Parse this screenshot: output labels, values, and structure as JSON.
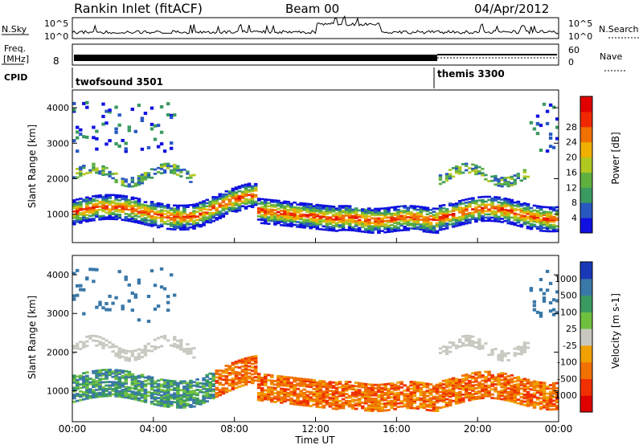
{
  "header": {
    "station": "Rankin Inlet (fitACF)",
    "beam": "Beam 00",
    "date": "04/Apr/2012"
  },
  "status_panel": {
    "nsky_label": "N.Sky",
    "nsky_top": "10^5",
    "nsky_bottom": "10^0",
    "nsearch_label": "N.Search",
    "nsearch_top": "10^5",
    "nsearch_bottom": "10^0",
    "freq_label_1": "Freq.",
    "freq_label_2": "[MHz]",
    "freq_value": "8",
    "nave_label": "Nave",
    "nave_top": "60",
    "nave_bottom": "0",
    "cpid_label": "CPID",
    "cpid_mode_1": "twofsound 3501",
    "cpid_mode_2": "themis 3300"
  },
  "chart_data": [
    {
      "type": "heatmap",
      "title": "",
      "ylabel": "Slant Range [km]",
      "yticks": [
        "1000",
        "2000",
        "3000",
        "4000"
      ],
      "ylim": [
        200,
        4500
      ],
      "xlim_hours": [
        0,
        24
      ],
      "colorbar": {
        "label": "Power [dB]",
        "ticks": [
          "4",
          "8",
          "12",
          "16",
          "20",
          "24",
          "28"
        ],
        "colors": [
          "#1010e0",
          "#2858c0",
          "#3a9a60",
          "#60b040",
          "#b0c820",
          "#f0b000",
          "#f07000",
          "#f02800",
          "#e00000"
        ]
      }
    },
    {
      "type": "heatmap",
      "title": "",
      "ylabel": "Slant Range [km]",
      "xlabel": "Time UT",
      "yticks": [
        "1000",
        "2000",
        "3000",
        "4000"
      ],
      "xticks": [
        "00:00",
        "04:00",
        "08:00",
        "12:00",
        "16:00",
        "20:00",
        "00:00"
      ],
      "ylim": [
        200,
        4500
      ],
      "xlim_hours": [
        0,
        24
      ],
      "colorbar": {
        "label": "Velocity [m s-1]",
        "ticks": [
          "1000",
          "500",
          "100",
          "25",
          "-25",
          "-100",
          "-500",
          "-1000"
        ],
        "colors": [
          "#1838b8",
          "#3a78a8",
          "#3a9a60",
          "#70c040",
          "#c8c8c0",
          "#f0a000",
          "#f07000",
          "#f03000",
          "#e00000"
        ]
      }
    }
  ]
}
